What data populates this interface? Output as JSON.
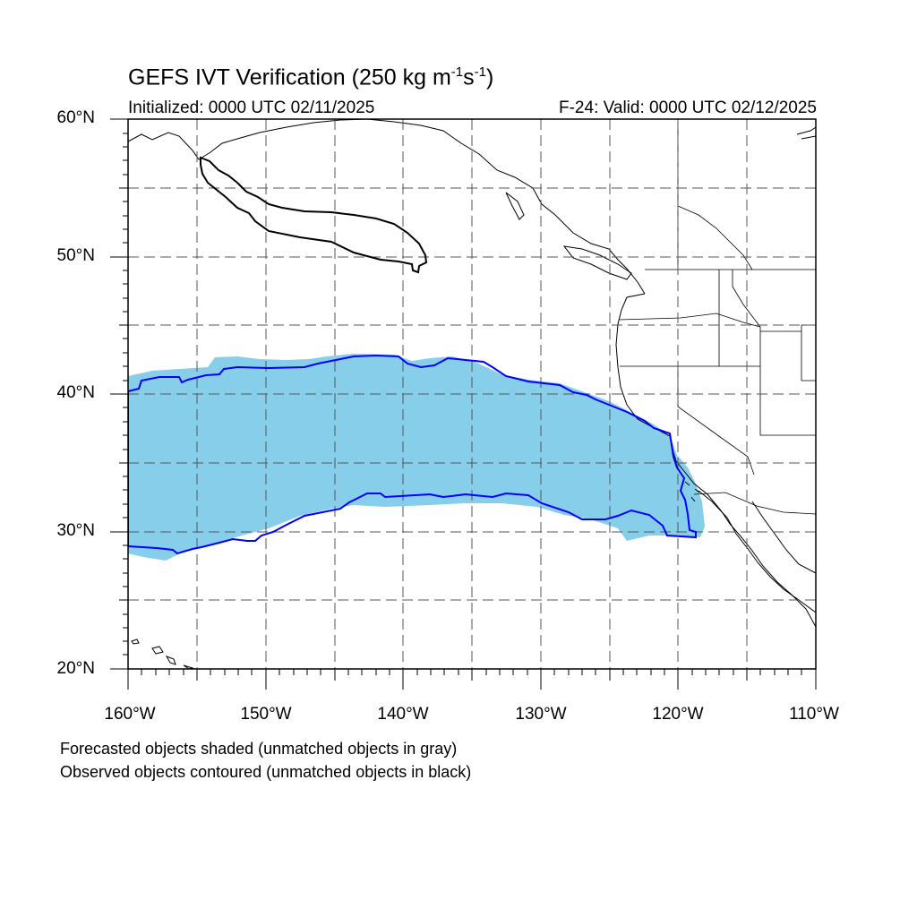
{
  "header": {
    "title_main": "GEFS IVT Verification (250 kg m",
    "title_exp1": "-1",
    "title_mid": "s",
    "title_exp2": "-1",
    "title_end": ")",
    "initialized": "Initialized: 0000 UTC 02/11/2025",
    "valid": "F-24: Valid: 0000 UTC 02/12/2025"
  },
  "axes": {
    "lat_labels": [
      "60°N",
      "50°N",
      "40°N",
      "30°N",
      "20°N"
    ],
    "lon_labels": [
      "160°W",
      "150°W",
      "140°W",
      "130°W",
      "120°W",
      "110°W"
    ],
    "lat_range": [
      20,
      60
    ],
    "lon_range": [
      -160,
      -110
    ],
    "grid": "dashed, 5 degree"
  },
  "legend": {
    "line1": "Forecasted objects shaded (unmatched objects in gray)",
    "line2": "Observed objects contoured (unmatched objects in black)"
  },
  "colors": {
    "forecast_fill": "#87ceeb",
    "observed_matched": "#0000ff",
    "observed_unmatched": "#000000",
    "coastline": "#000000"
  },
  "objects": {
    "forecast_shaded": "matched forecast object (sky blue)",
    "observed_matched_contour": "blue contour",
    "observed_unmatched_contour": "black contour"
  }
}
